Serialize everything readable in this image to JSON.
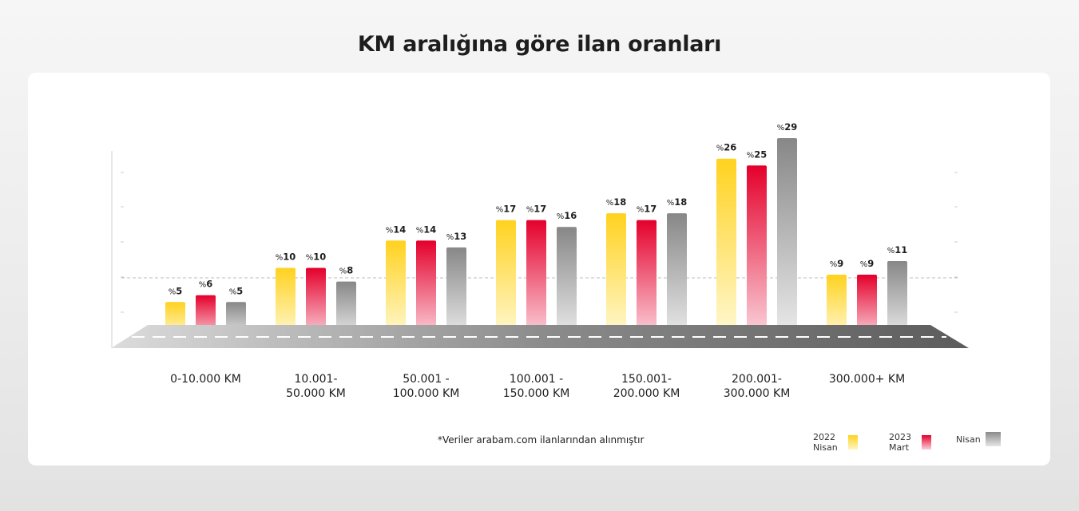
{
  "title": "KM aralığına göre ilan oranları",
  "footnote": "*Veriler arabam.com ilanlarından alınmıştır",
  "chart_data": {
    "type": "bar",
    "title": "KM aralığına göre ilan oranları",
    "categories": [
      [
        "0-10.000 KM"
      ],
      [
        "10.001-",
        "50.000 KM"
      ],
      [
        "50.001 -",
        "100.000 KM"
      ],
      [
        "100.001 -",
        "150.000 KM"
      ],
      [
        "150.001-",
        "200.000 KM"
      ],
      [
        "200.001-",
        "300.000 KM"
      ],
      [
        "300.000+ KM"
      ]
    ],
    "series": [
      {
        "name": "2022 Nisan",
        "values": [
          5,
          10,
          14,
          17,
          18,
          26,
          9
        ],
        "color": "#ffd21f"
      },
      {
        "name": "2023 Mart",
        "values": [
          6,
          10,
          14,
          17,
          17,
          25,
          9
        ],
        "color": "#e4002b"
      },
      {
        "name": "Nisan",
        "values": [
          5,
          8,
          13,
          16,
          18,
          29,
          11
        ],
        "color": "#8a8a8a"
      }
    ],
    "value_prefix": "%",
    "ylim": [
      0,
      30
    ],
    "legend_position": "bottom-right",
    "grid": false
  }
}
